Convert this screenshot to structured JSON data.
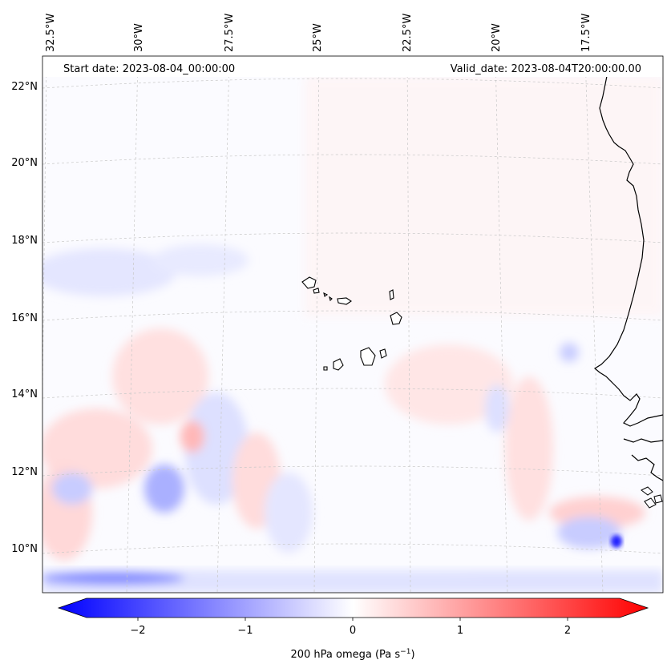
{
  "map": {
    "start_date": "Start date: 2023-08-04_00:00:00",
    "valid_date": "Valid_date: 2023-08-04T20:00:00.00",
    "lon_labels": [
      "32.5°W",
      "30°W",
      "27.5°W",
      "25°W",
      "22.5°W",
      "20°W",
      "17.5°W"
    ],
    "lat_labels": [
      "22°N",
      "20°N",
      "18°N",
      "16°N",
      "14°N",
      "12°N",
      "10°N"
    ],
    "coastline_color": "#000000"
  },
  "colorbar": {
    "ticks": [
      "−2",
      "−1",
      "0",
      "1",
      "2"
    ],
    "label_main": "200 hPa omega (Pa s",
    "label_sup": "−1",
    "label_close": ")",
    "min_color": "#0000ff",
    "mid_color": "#ffffff",
    "max_color": "#ff0000",
    "range": [
      -2.6,
      2.6
    ]
  }
}
